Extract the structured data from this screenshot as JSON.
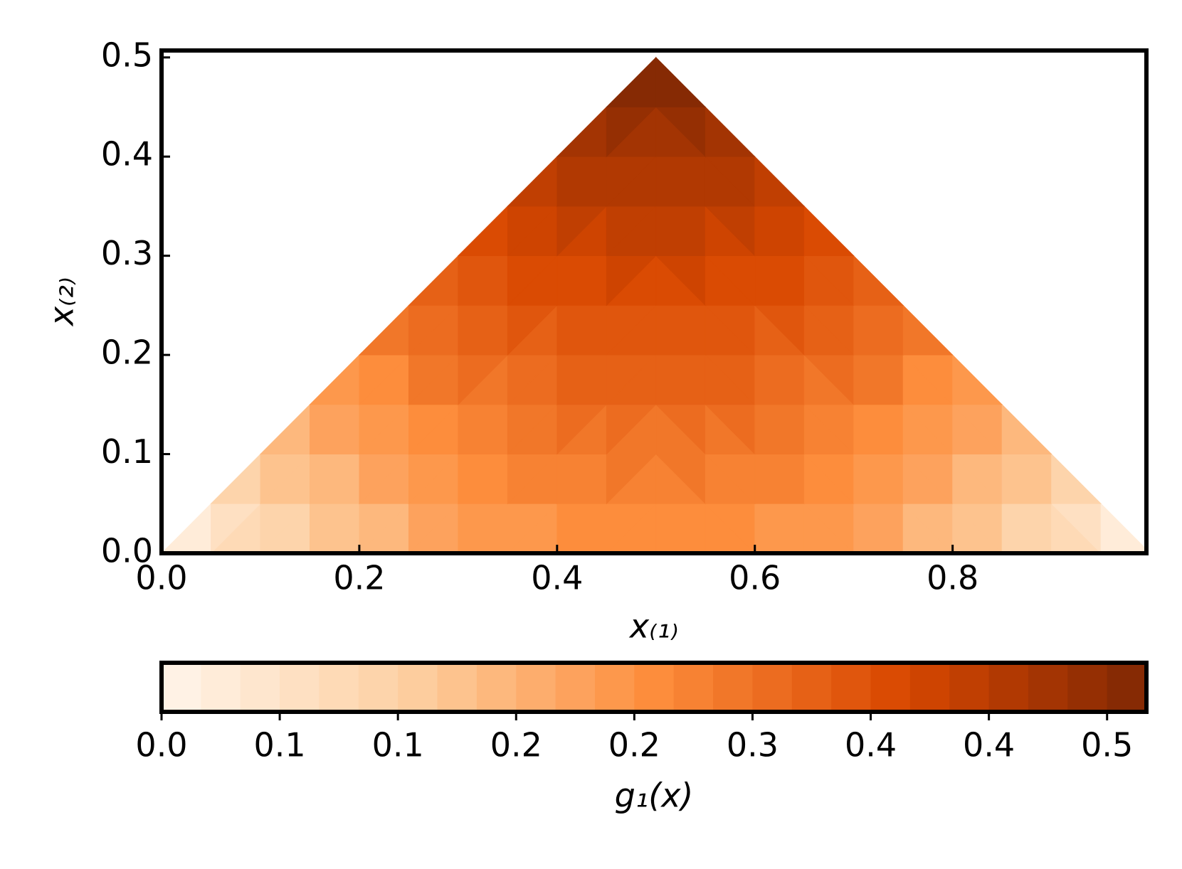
{
  "chart_data": {
    "type": "contour",
    "xlabel": "x₍₁₎",
    "ylabel": "x₍₂₎",
    "xlim": [
      0,
      0.996
    ],
    "ylim": [
      0,
      0.507
    ],
    "xticks": [
      {
        "value": 0,
        "label": "0.0"
      },
      0.2,
      0.4,
      0.6,
      0.8
    ],
    "yticks": [
      {
        "value": 0,
        "label": "0.0"
      },
      0.1,
      0.2,
      0.3,
      0.4,
      0.5
    ],
    "x": [
      0,
      0.05,
      0.1,
      0.15,
      0.2,
      0.25,
      0.3,
      0.35,
      0.4,
      0.45,
      0.5,
      0.55,
      0.6,
      0.65,
      0.7,
      0.75,
      0.8,
      0.85,
      0.9,
      0.95,
      1
    ],
    "y": [
      0,
      0.05,
      0.1,
      0.15,
      0.2,
      0.25,
      0.3,
      0.35,
      0.4,
      0.45,
      0.5
    ],
    "z": [
      [
        0,
        0.0475,
        0.09,
        0.1275,
        0.16,
        0.1875,
        0.21,
        0.2275,
        0.24,
        0.2475,
        0.25,
        0.2475,
        0.24,
        0.2275,
        0.21,
        0.1875,
        0.16,
        0.1275,
        0.09,
        0.0475,
        0
      ],
      [
        null,
        0.0745,
        0.117,
        0.1545,
        0.187,
        0.2145,
        0.237,
        0.2545,
        0.267,
        0.2745,
        0.277,
        0.2745,
        0.267,
        0.2545,
        0.237,
        0.2145,
        0.187,
        0.1545,
        0.117,
        0.0745,
        null
      ],
      [
        null,
        null,
        0.144,
        0.1815,
        0.214,
        0.2415,
        0.264,
        0.2815,
        0.294,
        0.3015,
        0.304,
        0.3015,
        0.294,
        0.2815,
        0.264,
        0.2415,
        0.214,
        0.1815,
        0.144,
        null,
        null
      ],
      [
        null,
        null,
        null,
        0.2085,
        0.241,
        0.2685,
        0.291,
        0.3085,
        0.321,
        0.3285,
        0.331,
        0.3285,
        0.321,
        0.3085,
        0.291,
        0.2685,
        0.241,
        0.2085,
        null,
        null,
        null
      ],
      [
        null,
        null,
        null,
        null,
        0.268,
        0.2955,
        0.318,
        0.3355,
        0.348,
        0.3555,
        0.358,
        0.3555,
        0.348,
        0.3355,
        0.318,
        0.2955,
        0.268,
        null,
        null,
        null,
        null
      ],
      [
        null,
        null,
        null,
        null,
        null,
        0.3225,
        0.345,
        0.3625,
        0.375,
        0.3825,
        0.385,
        0.3825,
        0.375,
        0.3625,
        0.345,
        0.3225,
        null,
        null,
        null,
        null,
        null
      ],
      [
        null,
        null,
        null,
        null,
        null,
        null,
        0.372,
        0.3895,
        0.402,
        0.4095,
        0.412,
        0.4095,
        0.402,
        0.3895,
        0.372,
        null,
        null,
        null,
        null,
        null,
        null
      ],
      [
        null,
        null,
        null,
        null,
        null,
        null,
        null,
        0.4165,
        0.429,
        0.4365,
        0.439,
        0.4365,
        0.429,
        0.4165,
        null,
        null,
        null,
        null,
        null,
        null,
        null
      ],
      [
        null,
        null,
        null,
        null,
        null,
        null,
        null,
        null,
        0.456,
        0.4635,
        0.466,
        0.4635,
        0.456,
        null,
        null,
        null,
        null,
        null,
        null,
        null,
        null
      ],
      [
        null,
        null,
        null,
        null,
        null,
        null,
        null,
        null,
        null,
        0.4905,
        0.493,
        0.4905,
        null,
        null,
        null,
        null,
        null,
        null,
        null,
        null,
        null
      ],
      [
        null,
        null,
        null,
        null,
        null,
        null,
        null,
        null,
        null,
        null,
        0.52,
        null,
        null,
        null,
        null,
        null,
        null,
        null,
        null,
        null,
        null
      ]
    ],
    "colorbar": {
      "label": "g₁(x)",
      "lim": [
        0,
        0.5208
      ],
      "levels": 25,
      "colors": [
        "#fff5eb",
        "#fdd0a2",
        "#fd8d3c",
        "#d94801",
        "#7f2704"
      ],
      "ticks": [
        {
          "value": 0,
          "label": "0.0"
        },
        {
          "value": 0.0625,
          "label": "0.1"
        },
        {
          "value": 0.125,
          "label": "0.1"
        },
        {
          "value": 0.1875,
          "label": "0.2"
        },
        {
          "value": 0.25,
          "label": "0.2"
        },
        {
          "value": 0.3125,
          "label": "0.3"
        },
        {
          "value": 0.375,
          "label": "0.4"
        },
        {
          "value": 0.4375,
          "label": "0.4"
        },
        {
          "value": 0.5,
          "label": "0.5"
        }
      ]
    }
  }
}
